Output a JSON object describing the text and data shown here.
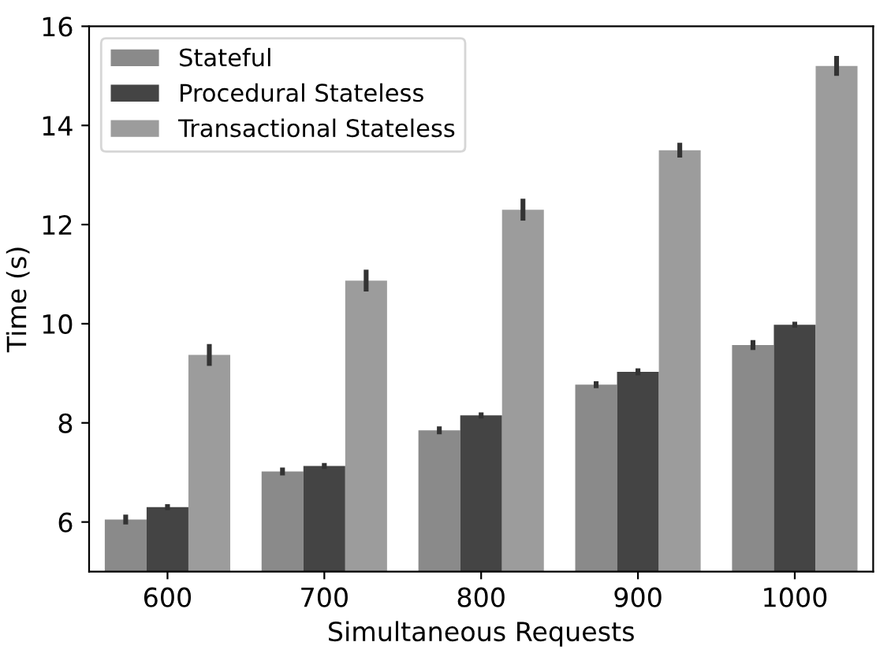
{
  "chart_data": {
    "type": "bar",
    "xlabel": "Simultaneous Requests",
    "ylabel": "Time (s)",
    "categories": [
      "600",
      "700",
      "800",
      "900",
      "1000"
    ],
    "series": [
      {
        "name": "Stateful",
        "color": "#8a8a8a",
        "values": [
          6.05,
          7.02,
          7.85,
          8.77,
          9.57
        ],
        "errors": [
          0.1,
          0.08,
          0.08,
          0.07,
          0.1
        ]
      },
      {
        "name": "Procedural Stateless",
        "color": "#444444",
        "values": [
          6.3,
          7.13,
          8.15,
          9.03,
          9.98
        ],
        "errors": [
          0.06,
          0.06,
          0.06,
          0.07,
          0.06
        ]
      },
      {
        "name": "Transactional Stateless",
        "color": "#9c9c9c",
        "values": [
          9.37,
          10.87,
          12.3,
          13.5,
          15.2
        ],
        "errors": [
          0.22,
          0.22,
          0.22,
          0.15,
          0.2
        ]
      }
    ],
    "ylim": [
      5,
      16
    ],
    "yticks": [
      6,
      8,
      10,
      12,
      14,
      16
    ],
    "legend": "top left",
    "grid": false
  }
}
